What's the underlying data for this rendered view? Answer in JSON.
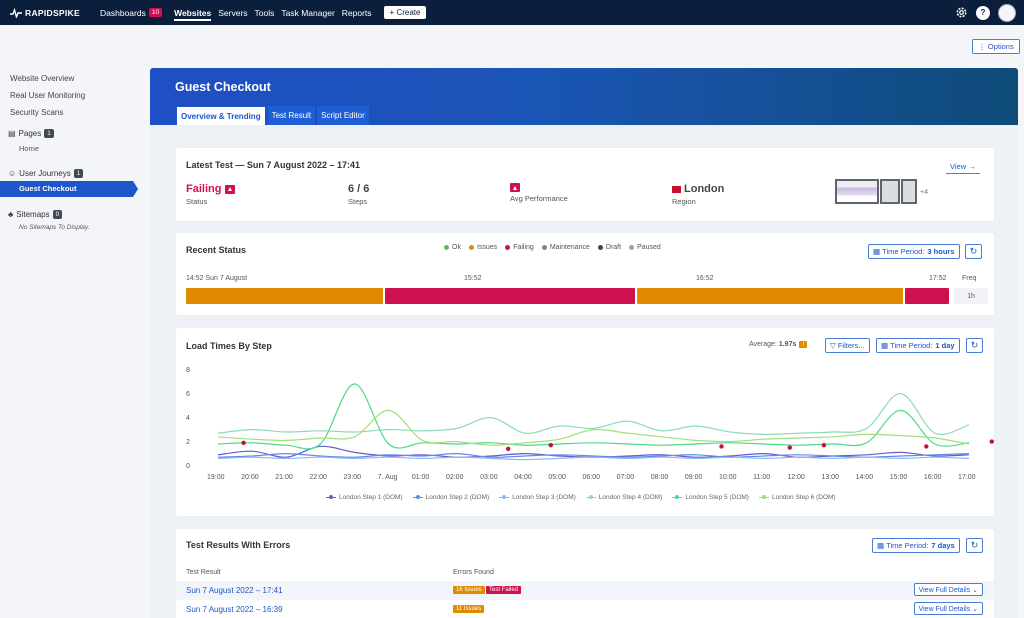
{
  "nav": {
    "brand": "RAPIDSPIKE",
    "items": [
      {
        "label": "Dashboards",
        "badge": "10"
      },
      {
        "label": "Websites"
      },
      {
        "label": "Servers"
      },
      {
        "label": "Tools"
      },
      {
        "label": "Task Manager"
      },
      {
        "label": "Reports"
      }
    ],
    "create_label": "+ Create",
    "help_label": "?"
  },
  "options_label": "⋮ Options",
  "sidebar": {
    "links": [
      "Website Overview",
      "Real User Monitoring",
      "Security Scans"
    ],
    "pages": {
      "label": "Pages",
      "count": "1",
      "items": [
        "Home"
      ]
    },
    "journeys": {
      "label": "User Journeys",
      "count": "1",
      "items": [
        "Guest Checkout"
      ]
    },
    "sitemaps": {
      "label": "Sitemaps",
      "count": "0",
      "empty": "No Sitemaps To Display."
    }
  },
  "header": {
    "title": "Guest Checkout",
    "tabs": [
      "Overview & Trending",
      "Test Result",
      "Script Editor"
    ]
  },
  "latest_test": {
    "title": "Latest Test — Sun 7 August 2022 – 17:41",
    "view_label": "View →",
    "status_value": "Failing",
    "status_label": "Status",
    "steps_value": "6 / 6",
    "steps_label": "Steps",
    "perf_label": "Avg Performance",
    "region_value": "London",
    "region_label": "Region",
    "more_screens": "+4"
  },
  "recent_status": {
    "title": "Recent Status",
    "legend": [
      {
        "label": "Ok",
        "color": "#5cb85c"
      },
      {
        "label": "Issues",
        "color": "#e08a00"
      },
      {
        "label": "Failing",
        "color": "#d0114f"
      },
      {
        "label": "Maintenance",
        "color": "#7a8594"
      },
      {
        "label": "Draft",
        "color": "#444444"
      },
      {
        "label": "Paused",
        "color": "#9aa3ad"
      }
    ],
    "time_period_label": "Time Period:",
    "time_period_value": "3 hours",
    "timeline_labels": [
      "14:52 Sun 7 August",
      "15:52",
      "16:52",
      "17:52"
    ],
    "freq_label": "Freq",
    "freq_value": "1h",
    "segments": [
      {
        "status": "Issues",
        "color": "#e08a00",
        "fraction": 0.26
      },
      {
        "status": "Failing",
        "color": "#d0114f",
        "fraction": 0.33
      },
      {
        "status": "Issues",
        "color": "#e08a00",
        "fraction": 0.35
      },
      {
        "status": "Failing",
        "color": "#d0114f",
        "fraction": 0.06
      }
    ]
  },
  "load_times": {
    "title": "Load Times By Step",
    "average_label": "Average:",
    "average_value": "1.97s",
    "average_flag": "!",
    "filters_label": "▽ Filters...",
    "time_period_label": "Time Period:",
    "time_period_value": "1 day"
  },
  "chart_data": {
    "type": "line",
    "title": "Load Times By Step",
    "ylim": [
      0,
      8
    ],
    "yticks": [
      0,
      2,
      4,
      6,
      8
    ],
    "categories": [
      "19:00",
      "20:00",
      "21:00",
      "22:00",
      "23:00",
      "7. Aug",
      "01:00",
      "02:00",
      "03:00",
      "04:00",
      "05:00",
      "06:00",
      "07:00",
      "08:00",
      "09:00",
      "10:00",
      "11:00",
      "12:00",
      "13:00",
      "14:00",
      "15:00",
      "16:00",
      "17:00"
    ],
    "legend_position": "bottom",
    "series": [
      {
        "name": "London Step 1 (DOM)",
        "color": "#6a5acd",
        "values": [
          1.1,
          1.4,
          0.9,
          1.8,
          1.3,
          1.0,
          1.1,
          0.9,
          1.0,
          1.2,
          1.0,
          0.9,
          1.0,
          1.1,
          0.9,
          1.0,
          1.2,
          0.9,
          1.0,
          1.1,
          1.3,
          1.0,
          1.1
        ]
      },
      {
        "name": "London Step 2 (DOM)",
        "color": "#5b8de8",
        "values": [
          0.9,
          1.0,
          1.2,
          1.0,
          0.9,
          1.1,
          1.0,
          1.2,
          0.9,
          1.0,
          1.1,
          1.0,
          0.9,
          1.0,
          1.1,
          0.9,
          1.0,
          1.1,
          1.0,
          0.9,
          1.0,
          1.1,
          1.2
        ]
      },
      {
        "name": "London Step 3 (DOM)",
        "color": "#8fb8f0",
        "values": [
          0.8,
          0.9,
          0.8,
          0.9,
          0.8,
          0.9,
          0.8,
          0.9,
          0.8,
          0.7,
          0.8,
          0.9,
          0.8,
          0.9,
          0.8,
          0.9,
          0.8,
          0.9,
          0.8,
          0.9,
          0.8,
          0.9,
          0.8
        ]
      },
      {
        "name": "London Step 4 (DOM)",
        "color": "#8ed9b8",
        "values": [
          2.9,
          3.2,
          3.0,
          3.1,
          3.0,
          3.2,
          3.1,
          3.3,
          4.2,
          2.9,
          3.5,
          3.3,
          3.9,
          3.1,
          3.5,
          3.0,
          2.8,
          2.9,
          3.0,
          3.3,
          6.2,
          2.9,
          3.6
        ]
      },
      {
        "name": "London Step 5 (DOM)",
        "color": "#4cd98a",
        "values": [
          2.0,
          2.1,
          1.9,
          2.0,
          7.0,
          2.0,
          2.1,
          2.0,
          2.1,
          1.9,
          2.0,
          2.1,
          2.0,
          1.9,
          2.0,
          2.1,
          2.0,
          1.9,
          2.0,
          2.1,
          4.8,
          2.0,
          2.1
        ]
      },
      {
        "name": "London Step 6 (DOM)",
        "color": "#9fe07a",
        "values": [
          2.6,
          2.4,
          2.3,
          2.5,
          2.6,
          4.8,
          2.3,
          2.2,
          1.9,
          2.1,
          2.4,
          3.2,
          2.9,
          2.6,
          2.3,
          2.2,
          2.4,
          2.5,
          2.6,
          2.8,
          2.7,
          2.5,
          2.0
        ]
      }
    ]
  },
  "failure_markers": [
    {
      "x": "19:45",
      "y": 2.1
    },
    {
      "x": "03:30",
      "y": 1.6
    },
    {
      "x": "04:45",
      "y": 1.9
    },
    {
      "x": "09:45",
      "y": 1.8
    },
    {
      "x": "11:45",
      "y": 1.7
    },
    {
      "x": "12:45",
      "y": 1.9
    },
    {
      "x": "15:45",
      "y": 1.8
    },
    {
      "x": "17:40",
      "y": 2.2
    }
  ],
  "errors": {
    "title": "Test Results With Errors",
    "time_period_label": "Time Period:",
    "time_period_value": "7 days",
    "col_result": "Test Result",
    "col_errors": "Errors Found",
    "rows": [
      {
        "date": "Sun 7 August 2022 – 17:41",
        "tags": [
          {
            "label": "16 Issues",
            "color": "#e08a00"
          },
          {
            "label": "Test Failed",
            "color": "#d0114f"
          }
        ],
        "action": "View Full Details ⌄"
      },
      {
        "date": "Sun 7 August 2022 – 16:39",
        "tags": [
          {
            "label": "11 Issues",
            "color": "#e08a00"
          }
        ],
        "action": "View Full Details ⌄"
      }
    ]
  }
}
